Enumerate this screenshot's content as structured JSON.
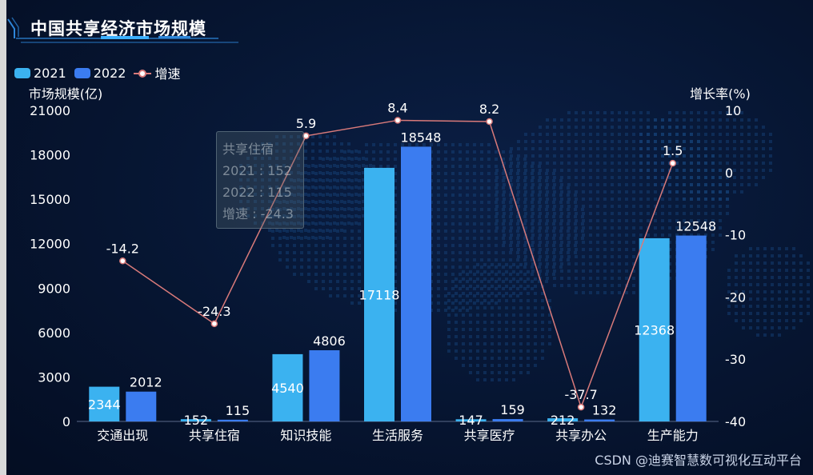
{
  "page": {
    "title": "中国共享经济市场规模",
    "watermark": "CSDN @迪赛智慧数可视化互动平台"
  },
  "legend": [
    {
      "label": "2021",
      "color": "#3bb2f0"
    },
    {
      "label": "2022",
      "color": "#3b7cf0"
    },
    {
      "label": "增速",
      "color": "#d97a7a"
    }
  ],
  "tooltip": {
    "title": "共享住宿",
    "rows": [
      "2021 : 152",
      "2022 : 115",
      "增速 : -24.3"
    ]
  },
  "chart_data": {
    "type": "bar",
    "title": "中国共享经济市场规模",
    "categories": [
      "交通出现",
      "共享住宿",
      "知识技能",
      "生活服务",
      "共享医疗",
      "共享办公",
      "生产能力"
    ],
    "series": [
      {
        "name": "2021",
        "type": "bar",
        "axis": "left",
        "color": "#3bb2f0",
        "values": [
          2344,
          152,
          4540,
          17118,
          147,
          212,
          12368
        ]
      },
      {
        "name": "2022",
        "type": "bar",
        "axis": "left",
        "color": "#3b7cf0",
        "values": [
          2012,
          115,
          4806,
          18548,
          159,
          132,
          12548
        ]
      },
      {
        "name": "增速",
        "type": "line",
        "axis": "right",
        "color": "#d97a7a",
        "values": [
          -14.2,
          -24.3,
          5.9,
          8.4,
          8.2,
          -37.7,
          1.5
        ]
      }
    ],
    "ylabel": "市场规模(亿)",
    "ylim": [
      0,
      21000
    ],
    "yticks": [
      0,
      3000,
      6000,
      9000,
      12000,
      15000,
      18000,
      21000
    ],
    "y2label": "增长率(%)",
    "y2lim": [
      -40,
      10
    ],
    "y2ticks": [
      -40,
      -30,
      -20,
      -10,
      0,
      10
    ],
    "legend_position": "top-left",
    "grid": false
  }
}
